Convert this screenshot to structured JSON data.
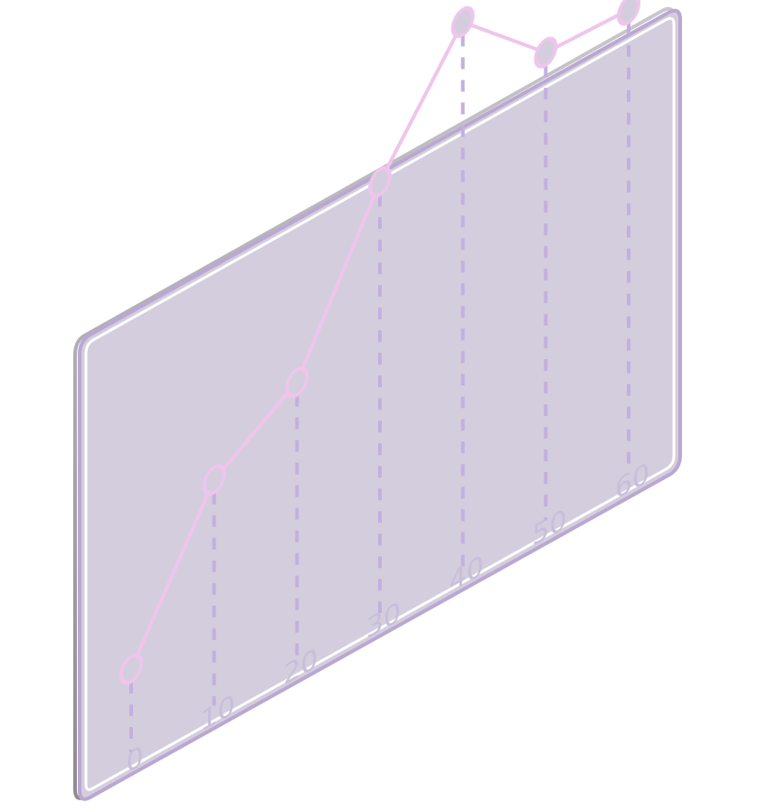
{
  "colors": {
    "panel_fill": "#d4cddd",
    "panel_edge": "#b9a8d2",
    "panel_highlight": "#ffffff",
    "panel_shadow": "#a9a3ad",
    "line": "#efc5ec",
    "dashes": "#c3b0de",
    "tick_text": "#c8bedb"
  },
  "chart_data": {
    "type": "line",
    "title": "",
    "xlabel": "",
    "ylabel": "",
    "x": [
      0,
      10,
      20,
      30,
      40,
      50,
      60
    ],
    "values": [
      0,
      39,
      53,
      95,
      126,
      105,
      104
    ],
    "tick_labels": [
      "0",
      "10",
      "20",
      "30",
      "40",
      "50",
      "60"
    ],
    "xlim": [
      0,
      60
    ],
    "ylim": [
      0,
      130
    ],
    "grid": false,
    "legend": "none",
    "projection": "isometric-panel"
  }
}
